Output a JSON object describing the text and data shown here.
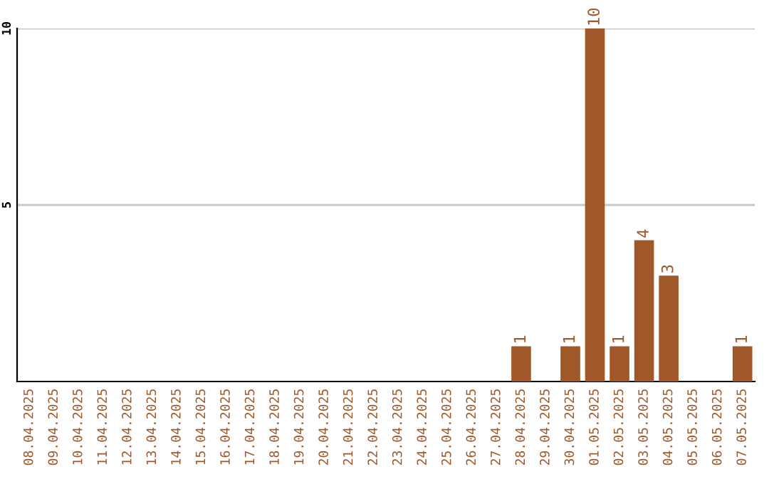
{
  "chart_data": {
    "type": "bar",
    "categories": [
      "08.04.2025",
      "09.04.2025",
      "10.04.2025",
      "11.04.2025",
      "12.04.2025",
      "13.04.2025",
      "14.04.2025",
      "15.04.2025",
      "16.04.2025",
      "17.04.2025",
      "18.04.2025",
      "19.04.2025",
      "20.04.2025",
      "21.04.2025",
      "22.04.2025",
      "23.04.2025",
      "24.04.2025",
      "25.04.2025",
      "26.04.2025",
      "27.04.2025",
      "28.04.2025",
      "29.04.2025",
      "30.04.2025",
      "01.05.2025",
      "02.05.2025",
      "03.05.2025",
      "04.05.2025",
      "05.05.2025",
      "06.05.2025",
      "07.05.2025"
    ],
    "values": [
      0,
      0,
      0,
      0,
      0,
      0,
      0,
      0,
      0,
      0,
      0,
      0,
      0,
      0,
      0,
      0,
      0,
      0,
      0,
      0,
      1,
      0,
      1,
      10,
      1,
      4,
      3,
      0,
      0,
      1
    ],
    "value_labels": [
      null,
      null,
      null,
      null,
      null,
      null,
      null,
      null,
      null,
      null,
      null,
      null,
      null,
      null,
      null,
      null,
      null,
      null,
      null,
      null,
      "1",
      null,
      "1",
      "10",
      "1",
      "4",
      "3",
      null,
      null,
      "1"
    ],
    "color": "#a0582a",
    "ylim": [
      0,
      10
    ],
    "yticks": [
      5,
      10
    ],
    "grid": "y"
  }
}
